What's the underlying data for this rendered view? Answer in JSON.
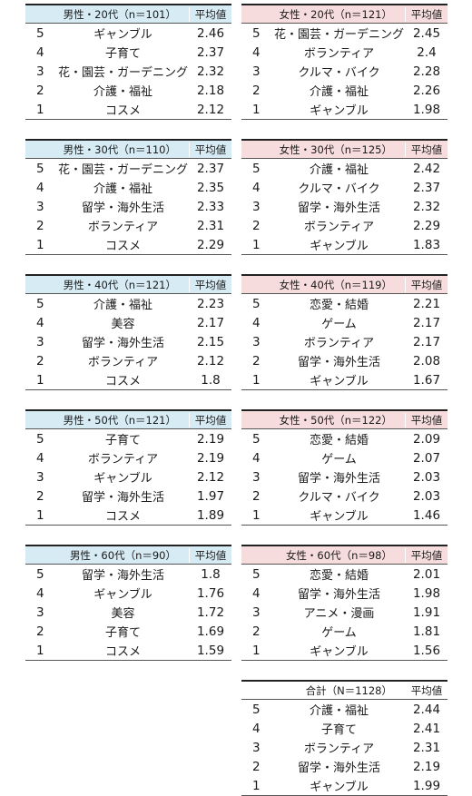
{
  "avg_label": "平均値",
  "tables": [
    {
      "key": "m20",
      "header": "男性・20代（n＝101）",
      "rows": [
        {
          "rank": "5",
          "item": "ギャンブル",
          "value": "2.46"
        },
        {
          "rank": "4",
          "item": "子育て",
          "value": "2.37"
        },
        {
          "rank": "3",
          "item": "花・園芸・ガーデニング",
          "value": "2.32"
        },
        {
          "rank": "2",
          "item": "介護・福祉",
          "value": "2.18"
        },
        {
          "rank": "1",
          "item": "コスメ",
          "value": "2.12"
        }
      ]
    },
    {
      "key": "f20",
      "header": "女性・20代（n＝121）",
      "rows": [
        {
          "rank": "5",
          "item": "花・園芸・ガーデニング",
          "value": "2.45"
        },
        {
          "rank": "4",
          "item": "ボランティア",
          "value": "2.4"
        },
        {
          "rank": "3",
          "item": "クルマ・バイク",
          "value": "2.28"
        },
        {
          "rank": "2",
          "item": "介護・福祉",
          "value": "2.26"
        },
        {
          "rank": "1",
          "item": "ギャンブル",
          "value": "1.98"
        }
      ]
    },
    {
      "key": "m30",
      "header": "男性・30代（n＝110）",
      "rows": [
        {
          "rank": "5",
          "item": "花・園芸・ガーデニング",
          "value": "2.37"
        },
        {
          "rank": "4",
          "item": "介護・福祉",
          "value": "2.35"
        },
        {
          "rank": "3",
          "item": "留学・海外生活",
          "value": "2.33"
        },
        {
          "rank": "2",
          "item": "ボランティア",
          "value": "2.31"
        },
        {
          "rank": "1",
          "item": "コスメ",
          "value": "2.29"
        }
      ]
    },
    {
      "key": "f30",
      "header": "女性・30代（n＝125）",
      "rows": [
        {
          "rank": "5",
          "item": "介護・福祉",
          "value": "2.42"
        },
        {
          "rank": "4",
          "item": "クルマ・バイク",
          "value": "2.37"
        },
        {
          "rank": "3",
          "item": "留学・海外生活",
          "value": "2.32"
        },
        {
          "rank": "2",
          "item": "ボランティア",
          "value": "2.29"
        },
        {
          "rank": "1",
          "item": "ギャンブル",
          "value": "1.83"
        }
      ]
    },
    {
      "key": "m40",
      "header": "男性・40代（n＝121）",
      "rows": [
        {
          "rank": "5",
          "item": "介護・福祉",
          "value": "2.23"
        },
        {
          "rank": "4",
          "item": "美容",
          "value": "2.17"
        },
        {
          "rank": "3",
          "item": "留学・海外生活",
          "value": "2.15"
        },
        {
          "rank": "2",
          "item": "ボランティア",
          "value": "2.12"
        },
        {
          "rank": "1",
          "item": "コスメ",
          "value": "1.8"
        }
      ]
    },
    {
      "key": "f40",
      "header": "女性・40代（n＝119）",
      "rows": [
        {
          "rank": "5",
          "item": "恋愛・結婚",
          "value": "2.21"
        },
        {
          "rank": "4",
          "item": "ゲーム",
          "value": "2.17"
        },
        {
          "rank": "3",
          "item": "ボランティア",
          "value": "2.17"
        },
        {
          "rank": "2",
          "item": "留学・海外生活",
          "value": "2.08"
        },
        {
          "rank": "1",
          "item": "ギャンブル",
          "value": "1.67"
        }
      ]
    },
    {
      "key": "m50",
      "header": "男性・50代（n＝121）",
      "rows": [
        {
          "rank": "5",
          "item": "子育て",
          "value": "2.19"
        },
        {
          "rank": "4",
          "item": "ボランティア",
          "value": "2.19"
        },
        {
          "rank": "3",
          "item": "ギャンブル",
          "value": "2.12"
        },
        {
          "rank": "2",
          "item": "留学・海外生活",
          "value": "1.97"
        },
        {
          "rank": "1",
          "item": "コスメ",
          "value": "1.89"
        }
      ]
    },
    {
      "key": "f50",
      "header": "女性・50代（n＝122）",
      "rows": [
        {
          "rank": "5",
          "item": "恋愛・結婚",
          "value": "2.09"
        },
        {
          "rank": "4",
          "item": "ゲーム",
          "value": "2.07"
        },
        {
          "rank": "3",
          "item": "留学・海外生活",
          "value": "2.03"
        },
        {
          "rank": "2",
          "item": "クルマ・バイク",
          "value": "2.03"
        },
        {
          "rank": "1",
          "item": "ギャンブル",
          "value": "1.46"
        }
      ]
    },
    {
      "key": "m60",
      "header": "男性・60代（n＝90）",
      "rows": [
        {
          "rank": "5",
          "item": "留学・海外生活",
          "value": "1.8"
        },
        {
          "rank": "4",
          "item": "ギャンブル",
          "value": "1.76"
        },
        {
          "rank": "3",
          "item": "美容",
          "value": "1.72"
        },
        {
          "rank": "2",
          "item": "子育て",
          "value": "1.69"
        },
        {
          "rank": "1",
          "item": "コスメ",
          "value": "1.59"
        }
      ]
    },
    {
      "key": "f60",
      "header": "女性・60代（n＝98）",
      "rows": [
        {
          "rank": "5",
          "item": "恋愛・結婚",
          "value": "2.01"
        },
        {
          "rank": "4",
          "item": "留学・海外生活",
          "value": "1.98"
        },
        {
          "rank": "3",
          "item": "アニメ・漫画",
          "value": "1.91"
        },
        {
          "rank": "2",
          "item": "ゲーム",
          "value": "1.81"
        },
        {
          "rank": "1",
          "item": "ギャンブル",
          "value": "1.56"
        }
      ]
    },
    {
      "key": "total",
      "header": "合計（N＝1128）",
      "rows": [
        {
          "rank": "5",
          "item": "介護・福祉",
          "value": "2.44"
        },
        {
          "rank": "4",
          "item": "子育て",
          "value": "2.41"
        },
        {
          "rank": "3",
          "item": "ボランティア",
          "value": "2.31"
        },
        {
          "rank": "2",
          "item": "留学・海外生活",
          "value": "2.19"
        },
        {
          "rank": "1",
          "item": "ギャンブル",
          "value": "1.99"
        }
      ]
    }
  ]
}
